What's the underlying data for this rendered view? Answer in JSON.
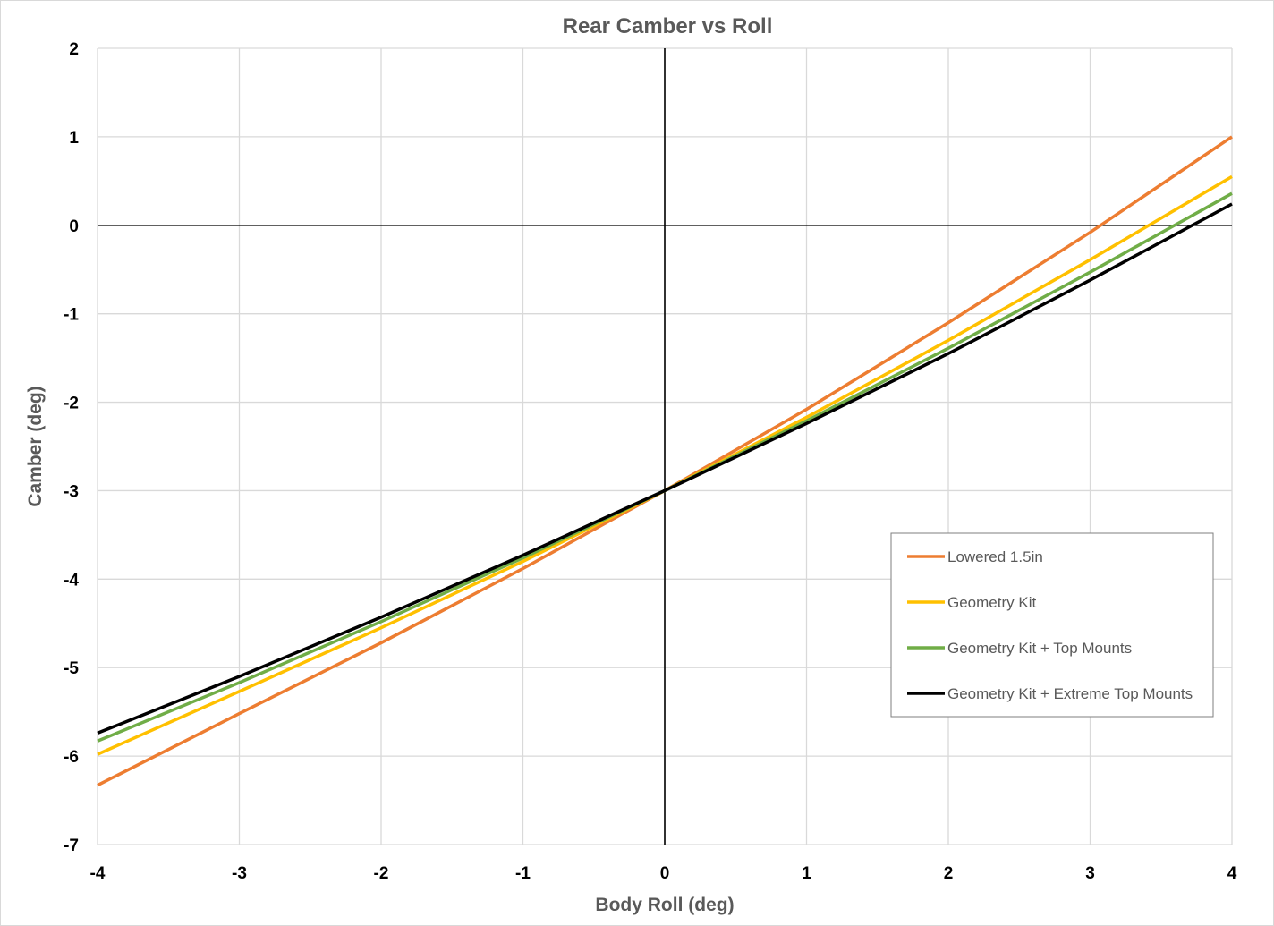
{
  "chart_data": {
    "type": "line",
    "title": "Rear Camber vs Roll",
    "xlabel": "Body Roll (deg)",
    "ylabel": "Camber (deg)",
    "xlim": [
      -4,
      4
    ],
    "ylim": [
      -7,
      2
    ],
    "xticks": [
      "-4",
      "-3",
      "-2",
      "-1",
      "0",
      "1",
      "2",
      "3",
      "4"
    ],
    "yticks": [
      "2",
      "1",
      "0",
      "-1",
      "-2",
      "-3",
      "-4",
      "-5",
      "-6",
      "-7"
    ],
    "grid": true,
    "legend_position": "right",
    "series": [
      {
        "name": "Lowered 1.5in",
        "color": "#ED7D31",
        "x": [
          -4,
          -3,
          -2,
          -1,
          0,
          1,
          2,
          3,
          4
        ],
        "y": [
          -6.33,
          -5.52,
          -4.72,
          -3.88,
          -3.0,
          -2.08,
          -1.1,
          -0.08,
          1.0
        ]
      },
      {
        "name": "Geometry Kit",
        "color": "#FFC000",
        "x": [
          -4,
          -3,
          -2,
          -1,
          0,
          1,
          2,
          3,
          4
        ],
        "y": [
          -5.98,
          -5.27,
          -4.55,
          -3.8,
          -3.0,
          -2.17,
          -1.3,
          -0.39,
          0.55
        ]
      },
      {
        "name": "Geometry Kit + Top Mounts",
        "color": "#70AD47",
        "x": [
          -4,
          -3,
          -2,
          -1,
          0,
          1,
          2,
          3,
          4
        ],
        "y": [
          -5.83,
          -5.17,
          -4.48,
          -3.76,
          -3.0,
          -2.21,
          -1.39,
          -0.53,
          0.36
        ]
      },
      {
        "name": "Geometry Kit + Extreme Top Mounts",
        "color": "#000000",
        "x": [
          -4,
          -3,
          -2,
          -1,
          0,
          1,
          2,
          3,
          4
        ],
        "y": [
          -5.74,
          -5.1,
          -4.43,
          -3.73,
          -3.0,
          -2.24,
          -1.45,
          -0.62,
          0.24
        ]
      }
    ]
  }
}
